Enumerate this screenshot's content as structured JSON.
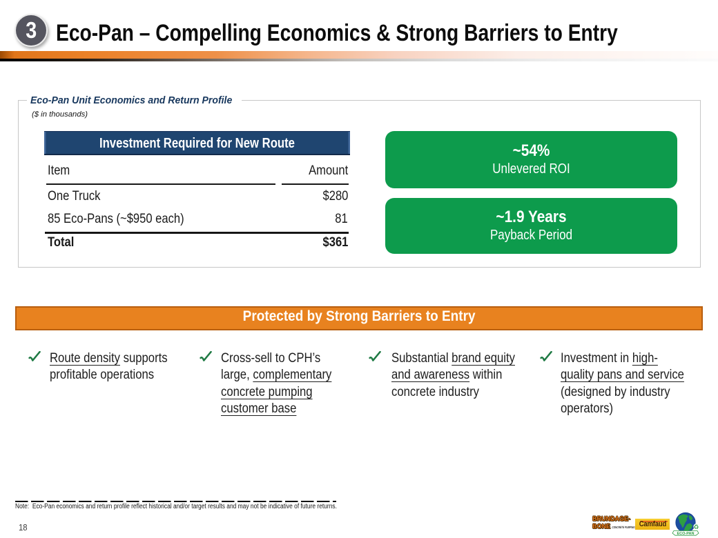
{
  "header": {
    "badge": "3",
    "title": "Eco-Pan – Compelling Economics & Strong Barriers to Entry"
  },
  "econ_panel": {
    "legend": "Eco-Pan Unit Economics and Return Profile",
    "subtitle": "($ in thousands)",
    "table": {
      "header": "Investment Required for New Route",
      "columns": {
        "item": "Item",
        "amount": "Amount"
      },
      "rows": [
        {
          "item": "One Truck",
          "amount": "$280"
        },
        {
          "item": "85 Eco-Pans (~$950 each)",
          "amount": "81"
        }
      ],
      "total": {
        "item": "Total",
        "amount": "$361"
      }
    },
    "metrics": [
      {
        "value": "~54%",
        "label": "Unlevered ROI"
      },
      {
        "value": "~1.9 Years",
        "label": "Payback Period"
      }
    ]
  },
  "banner": {
    "label": "Protected by Strong Barriers to Entry"
  },
  "bullets": [
    {
      "lines": [
        [
          {
            "t": "Route density",
            "u": true
          },
          {
            "t": " supports",
            "u": false
          }
        ],
        [
          {
            "t": "profitable operations",
            "u": false
          }
        ]
      ]
    },
    {
      "lines": [
        [
          {
            "t": "Cross-sell to CPH’s",
            "u": false
          }
        ],
        [
          {
            "t": "large, ",
            "u": false
          },
          {
            "t": "complementary",
            "u": true
          }
        ],
        [
          {
            "t": "concrete pumping",
            "u": true
          }
        ],
        [
          {
            "t": "customer base",
            "u": true
          }
        ]
      ]
    },
    {
      "lines": [
        [
          {
            "t": "Substantial ",
            "u": false
          },
          {
            "t": "brand equity",
            "u": true
          }
        ],
        [
          {
            "t": "and awareness",
            "u": true
          },
          {
            "t": " within",
            "u": false
          }
        ],
        [
          {
            "t": "concrete industry",
            "u": false
          }
        ]
      ]
    },
    {
      "lines": [
        [
          {
            "t": "Investment in ",
            "u": false
          },
          {
            "t": "high-",
            "u": true
          }
        ],
        [
          {
            "t": "quality pans and service",
            "u": true
          }
        ],
        [
          {
            "t": "(designed by industry",
            "u": false
          }
        ],
        [
          {
            "t": "operators)",
            "u": false
          }
        ]
      ]
    }
  ],
  "footer": {
    "note": "Note:  Eco-Pan economics and return profile reflect historical and/or target results and may not be indicative of future returns.",
    "page_number": "18"
  },
  "logos": {
    "brundage_line1": "BRUNDAGE-",
    "brundage_line2": "BONE",
    "brundage_sub": "CONCRETE PUMPING",
    "camfaud": "Camfaud",
    "ecopan": "ECO-PAN"
  },
  "colors": {
    "metric_green": "#0d9b4c",
    "table_navy": "#1f4570",
    "banner_orange": "#e8821f",
    "banner_border": "#b85e0e",
    "legend_blue": "#17375d",
    "check_green": "#1f7a44",
    "accent_bar_orange": "#ea8226"
  }
}
